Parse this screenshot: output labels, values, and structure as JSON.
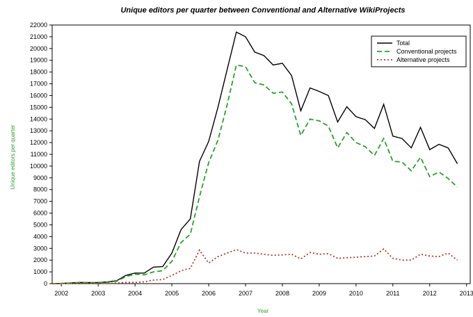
{
  "chart_data": {
    "type": "line",
    "title": "Unique editors per quarter between Conventional and Alternative WikiProjects",
    "xlabel": "Year",
    "ylabel": "Unique editors per quarter",
    "xlim": [
      2001.75,
      2013.1
    ],
    "ylim": [
      0,
      22000
    ],
    "x_ticks": [
      2002,
      2003,
      2004,
      2005,
      2006,
      2007,
      2008,
      2009,
      2010,
      2011,
      2012,
      2013
    ],
    "y_ticks": [
      0,
      1000,
      2000,
      3000,
      4000,
      5000,
      6000,
      7000,
      8000,
      9000,
      10000,
      11000,
      12000,
      13000,
      14000,
      15000,
      16000,
      17000,
      18000,
      19000,
      20000,
      21000,
      22000
    ],
    "grid": false,
    "legend_position": "top-right",
    "x": [
      2001.75,
      2002.0,
      2002.25,
      2002.5,
      2002.75,
      2003.0,
      2003.25,
      2003.5,
      2003.75,
      2004.0,
      2004.25,
      2004.5,
      2004.75,
      2005.0,
      2005.25,
      2005.5,
      2005.75,
      2006.0,
      2006.25,
      2006.5,
      2006.75,
      2007.0,
      2007.25,
      2007.5,
      2007.75,
      2008.0,
      2008.25,
      2008.5,
      2008.75,
      2009.0,
      2009.25,
      2009.5,
      2009.75,
      2010.0,
      2010.25,
      2010.5,
      2010.75,
      2011.0,
      2011.25,
      2011.5,
      2011.75,
      2012.0,
      2012.25,
      2012.5,
      2012.75
    ],
    "series": [
      {
        "name": "Total",
        "color": "#000000",
        "style": "solid",
        "values": [
          0,
          20,
          60,
          100,
          90,
          100,
          150,
          250,
          700,
          900,
          900,
          1400,
          1450,
          2600,
          4600,
          5500,
          10400,
          12100,
          15000,
          18200,
          21400,
          21000,
          19700,
          19400,
          18600,
          18750,
          17700,
          14700,
          16650,
          16350,
          16000,
          13750,
          15050,
          14200,
          13950,
          13200,
          15250,
          12550,
          12350,
          11550,
          13300,
          11400,
          11850,
          11550,
          10200
        ]
      },
      {
        "name": "Conventional projects",
        "color": "#2e9e2e",
        "style": "dashed",
        "values": [
          0,
          15,
          50,
          80,
          70,
          80,
          120,
          200,
          600,
          800,
          750,
          1000,
          1100,
          1900,
          3500,
          4200,
          7400,
          10300,
          12200,
          15200,
          18600,
          18450,
          17100,
          16900,
          16200,
          16300,
          15300,
          12600,
          14000,
          13850,
          13400,
          11550,
          12850,
          12000,
          11650,
          10900,
          12350,
          10400,
          10350,
          9600,
          10750,
          9100,
          9500,
          8950,
          8200
        ]
      },
      {
        "name": "Alternative projects",
        "color": "#b03a2e",
        "style": "dotted",
        "values": [
          0,
          5,
          10,
          20,
          20,
          20,
          30,
          50,
          100,
          100,
          150,
          300,
          350,
          700,
          1100,
          1300,
          2850,
          1750,
          2300,
          2600,
          2900,
          2600,
          2600,
          2500,
          2400,
          2450,
          2500,
          2100,
          2650,
          2500,
          2550,
          2150,
          2200,
          2250,
          2300,
          2350,
          2950,
          2150,
          2000,
          2000,
          2500,
          2350,
          2300,
          2600,
          2000
        ]
      }
    ]
  }
}
